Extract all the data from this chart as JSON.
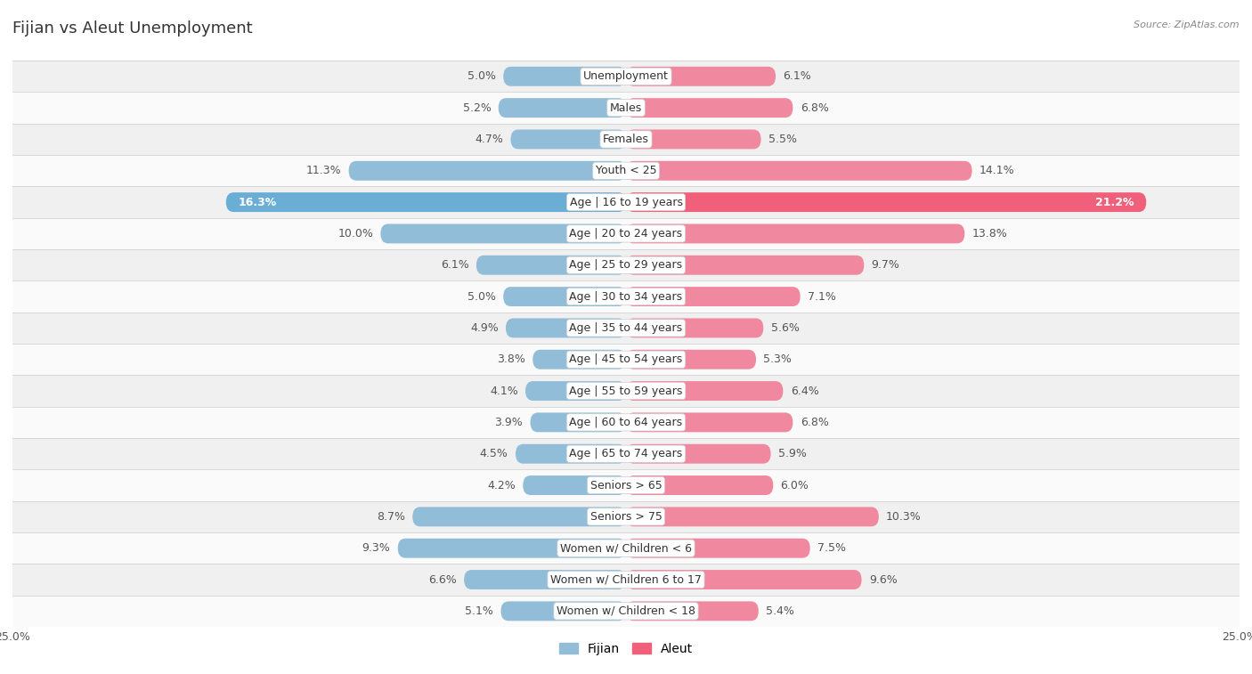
{
  "title": "Fijian vs Aleut Unemployment",
  "source": "Source: ZipAtlas.com",
  "categories": [
    "Unemployment",
    "Males",
    "Females",
    "Youth < 25",
    "Age | 16 to 19 years",
    "Age | 20 to 24 years",
    "Age | 25 to 29 years",
    "Age | 30 to 34 years",
    "Age | 35 to 44 years",
    "Age | 45 to 54 years",
    "Age | 55 to 59 years",
    "Age | 60 to 64 years",
    "Age | 65 to 74 years",
    "Seniors > 65",
    "Seniors > 75",
    "Women w/ Children < 6",
    "Women w/ Children 6 to 17",
    "Women w/ Children < 18"
  ],
  "fijian": [
    5.0,
    5.2,
    4.7,
    11.3,
    16.3,
    10.0,
    6.1,
    5.0,
    4.9,
    3.8,
    4.1,
    3.9,
    4.5,
    4.2,
    8.7,
    9.3,
    6.6,
    5.1
  ],
  "aleut": [
    6.1,
    6.8,
    5.5,
    14.1,
    21.2,
    13.8,
    9.7,
    7.1,
    5.6,
    5.3,
    6.4,
    6.8,
    5.9,
    6.0,
    10.3,
    7.5,
    9.6,
    5.4
  ],
  "fijian_color": "#92bdd8",
  "aleut_color": "#f0889f",
  "fijian_highlight_color": "#6aadd5",
  "aleut_highlight_color": "#f0607a",
  "row_bg_even": "#f0f0f0",
  "row_bg_odd": "#fafafa",
  "axis_max": 25.0,
  "bar_height": 0.62,
  "label_fontsize": 9.0,
  "category_fontsize": 9.0,
  "title_fontsize": 13,
  "legend_fontsize": 10,
  "highlight_index": 4
}
